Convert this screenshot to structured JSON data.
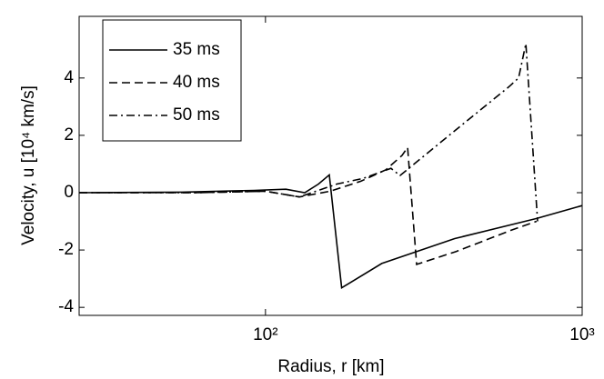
{
  "chart_data": {
    "type": "line",
    "xlabel": "Radius, r [km]",
    "ylabel": "Velocity, u [10⁴ km/s]",
    "xscale": "log",
    "xlim": [
      25.8,
      1000
    ],
    "ylim": [
      -4.28,
      6.15
    ],
    "xticks": [
      {
        "value": 100,
        "label": "10²"
      },
      {
        "value": 1000,
        "label": "10³"
      }
    ],
    "yticks": [
      -4,
      -2,
      0,
      2,
      4
    ],
    "legend": "upper left",
    "series": [
      {
        "name": "35 ms",
        "color": "#000000",
        "dash": "solid",
        "x": [
          25.8,
          54.5,
          92,
          116,
          133,
          147,
          159,
          174,
          233,
          396,
          718,
          1000
        ],
        "values": [
          0,
          0.02,
          0.08,
          0.12,
          0,
          0.3,
          0.62,
          -3.32,
          -2.47,
          -1.6,
          -0.9,
          -0.45
        ]
      },
      {
        "name": "40 ms",
        "color": "#000000",
        "dash": "dashed",
        "x": [
          25.8,
          60,
          100,
          128,
          160,
          200,
          240,
          270,
          281,
          300,
          400,
          600,
          718
        ],
        "values": [
          0,
          0,
          0.05,
          -0.15,
          0.05,
          0.4,
          0.8,
          1.3,
          1.58,
          -2.5,
          -2.05,
          -1.3,
          -1.0
        ]
      },
      {
        "name": "50 ms",
        "color": "#000000",
        "dash": "dashdot",
        "x": [
          25.8,
          60,
          100,
          128,
          168,
          204,
          249,
          266,
          400,
          588,
          630,
          664,
          723
        ],
        "values": [
          0,
          0,
          0.05,
          -0.15,
          0.3,
          0.5,
          0.85,
          0.6,
          2.2,
          3.7,
          4.0,
          5.2,
          -1.0
        ]
      }
    ]
  }
}
